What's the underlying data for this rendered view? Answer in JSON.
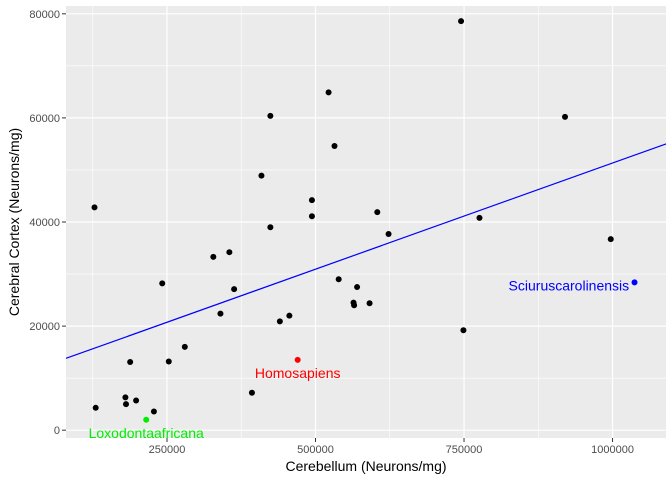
{
  "chart_data": {
    "type": "scatter",
    "title": "",
    "xlabel": "Cerebellum (Neurons/mg)",
    "ylabel": "Cerebral Cortex (Neurons/mg)",
    "xlim": [
      80000,
      1090000
    ],
    "ylim": [
      -1500,
      81500
    ],
    "x_ticks": [
      250000,
      500000,
      750000,
      1000000
    ],
    "x_tick_labels": [
      "250000",
      "500000",
      "750000",
      "1000000"
    ],
    "x_minor_ticks": [
      125000,
      375000,
      625000,
      875000
    ],
    "y_ticks": [
      0,
      20000,
      40000,
      60000,
      80000
    ],
    "y_tick_labels": [
      "0",
      "20000",
      "40000",
      "60000",
      "80000"
    ],
    "y_minor_ticks": [
      10000,
      30000,
      50000,
      70000
    ],
    "grid": true,
    "legend": "none",
    "colors": {
      "panel": "#ebebeb",
      "grid": "#ffffff",
      "point": "#000000",
      "trend": "#0000ff",
      "homo": "#ff0000",
      "loxo": "#00ee00",
      "sciurus": "#0000ff"
    },
    "points": [
      {
        "x": 128000,
        "y": 42800
      },
      {
        "x": 130000,
        "y": 4300
      },
      {
        "x": 180000,
        "y": 6300
      },
      {
        "x": 181000,
        "y": 5000
      },
      {
        "x": 188000,
        "y": 13100
      },
      {
        "x": 198000,
        "y": 5700
      },
      {
        "x": 228000,
        "y": 3600
      },
      {
        "x": 242000,
        "y": 28200
      },
      {
        "x": 253000,
        "y": 13200
      },
      {
        "x": 280000,
        "y": 16000
      },
      {
        "x": 328000,
        "y": 33300
      },
      {
        "x": 340000,
        "y": 22400
      },
      {
        "x": 355000,
        "y": 34200
      },
      {
        "x": 363000,
        "y": 27100
      },
      {
        "x": 393000,
        "y": 7200
      },
      {
        "x": 409000,
        "y": 48900
      },
      {
        "x": 424000,
        "y": 60400
      },
      {
        "x": 424000,
        "y": 39000
      },
      {
        "x": 440000,
        "y": 20900
      },
      {
        "x": 456000,
        "y": 22000
      },
      {
        "x": 494000,
        "y": 44200
      },
      {
        "x": 494000,
        "y": 41100
      },
      {
        "x": 522000,
        "y": 64900
      },
      {
        "x": 532000,
        "y": 54600
      },
      {
        "x": 539000,
        "y": 29000
      },
      {
        "x": 564000,
        "y": 24500
      },
      {
        "x": 565000,
        "y": 24000
      },
      {
        "x": 570000,
        "y": 27500
      },
      {
        "x": 591000,
        "y": 24400
      },
      {
        "x": 604000,
        "y": 41900
      },
      {
        "x": 623000,
        "y": 37700
      },
      {
        "x": 745000,
        "y": 78600
      },
      {
        "x": 749000,
        "y": 19200
      },
      {
        "x": 776000,
        "y": 40800
      },
      {
        "x": 920000,
        "y": 60200
      },
      {
        "x": 997000,
        "y": 36700
      }
    ],
    "highlighted": [
      {
        "name": "Homosapiens",
        "x": 470000,
        "y": 13500,
        "color": "#ff0000",
        "label_anchor": "middle",
        "label_dx": 0,
        "label_dy": -2500
      },
      {
        "name": "Loxodontaafricana",
        "x": 215000,
        "y": 2000,
        "color": "#00ee00",
        "label_anchor": "middle",
        "label_dx": 0,
        "label_dy": -2500
      },
      {
        "name": "Sciuruscarolinensis",
        "x": 1037000,
        "y": 28400,
        "color": "#0000ff",
        "label_anchor": "end",
        "label_dx": -9000,
        "label_dy": -600
      }
    ],
    "trend_line": {
      "x": [
        80000,
        1090000
      ],
      "y": [
        13800,
        55000
      ]
    }
  }
}
